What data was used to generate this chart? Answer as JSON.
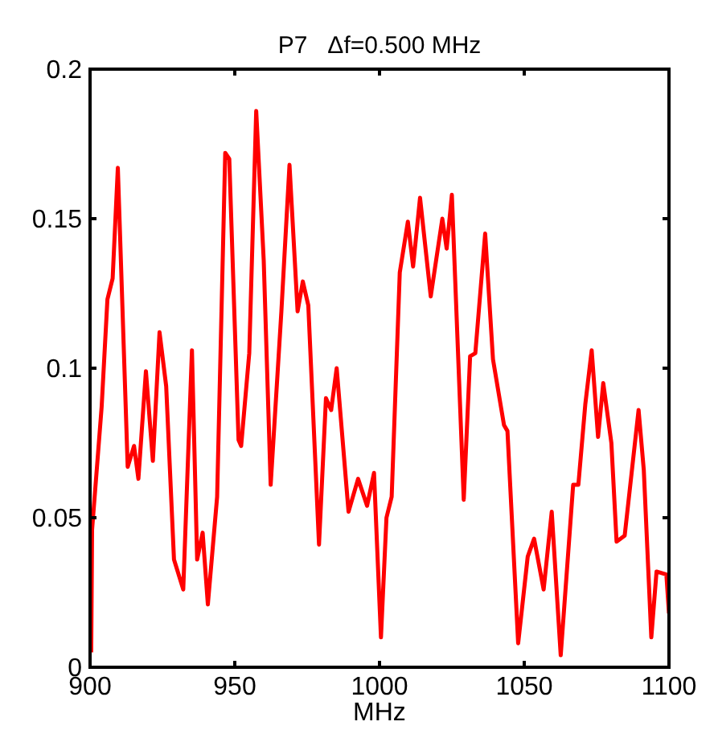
{
  "chart_data": {
    "type": "line",
    "title": "P7   Δf=0.500 MHz",
    "xlabel": "MHz",
    "xlim": [
      900,
      1100
    ],
    "ylim": [
      0,
      0.2
    ],
    "xticks": [
      900,
      950,
      1000,
      1050,
      1100
    ],
    "yticks": [
      0,
      0.05,
      0.1,
      0.15,
      0.2
    ],
    "grid": false,
    "marker": "none",
    "line_style": "solid",
    "series": [
      {
        "color": "#ff0000",
        "x": [
          900.4,
          900.7,
          904,
          906,
          907.8,
          909.6,
          913,
          915.2,
          916.7,
          919.3,
          921.7,
          924,
          926.3,
          929,
          932.2,
          935.2,
          937,
          938.9,
          940.7,
          943.9,
          946.7,
          948.1,
          951.3,
          952.2,
          955,
          957.4,
          960,
          962.4,
          966.1,
          968.9,
          971.7,
          973.5,
          975.4,
          979.1,
          981.5,
          983.3,
          985.2,
          989.3,
          992.6,
          995.7,
          998.1,
          1000.5,
          1002.4,
          1004.2,
          1007,
          1009.8,
          1011.6,
          1014,
          1017.7,
          1021.7,
          1023.2,
          1025,
          1029.1,
          1031.3,
          1033.1,
          1036.5,
          1039.2,
          1043,
          1044.2,
          1047.9,
          1051.2,
          1053.4,
          1056.7,
          1059.5,
          1062.6,
          1066.9,
          1068.7,
          1071.1,
          1073.3,
          1075.5,
          1077.3,
          1080.1,
          1081.9,
          1084.7,
          1089.5,
          1091.3,
          1093.9,
          1095.7,
          1099.1,
          1100
        ],
        "values": [
          0.005,
          0.046,
          0.087,
          0.123,
          0.13,
          0.167,
          0.067,
          0.074,
          0.063,
          0.099,
          0.069,
          0.112,
          0.094,
          0.036,
          0.026,
          0.106,
          0.036,
          0.045,
          0.021,
          0.057,
          0.172,
          0.17,
          0.076,
          0.074,
          0.105,
          0.186,
          0.136,
          0.061,
          0.119,
          0.168,
          0.119,
          0.129,
          0.121,
          0.041,
          0.09,
          0.086,
          0.1,
          0.052,
          0.063,
          0.054,
          0.065,
          0.01,
          0.05,
          0.057,
          0.132,
          0.149,
          0.134,
          0.157,
          0.124,
          0.15,
          0.14,
          0.158,
          0.056,
          0.104,
          0.105,
          0.145,
          0.103,
          0.081,
          0.079,
          0.008,
          0.037,
          0.043,
          0.026,
          0.052,
          0.004,
          0.061,
          0.061,
          0.088,
          0.106,
          0.077,
          0.095,
          0.075,
          0.042,
          0.044,
          0.086,
          0.066,
          0.01,
          0.032,
          0.031,
          0.018
        ]
      }
    ]
  }
}
